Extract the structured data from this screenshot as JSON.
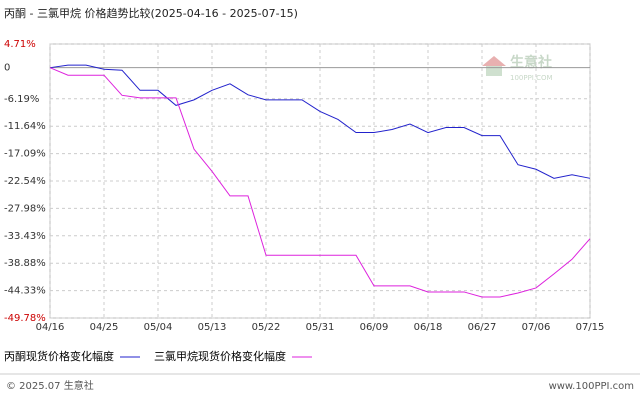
{
  "chart_data": {
    "type": "line",
    "title": "丙酮 - 三氯甲烷 价格趋势比较(2025-04-16 - 2025-07-15)",
    "x": [
      "04/16",
      "04/19",
      "04/22",
      "04/25",
      "04/28",
      "05/01",
      "05/04",
      "05/07",
      "05/10",
      "05/13",
      "05/16",
      "05/19",
      "05/22",
      "05/25",
      "05/28",
      "05/31",
      "06/03",
      "06/06",
      "06/09",
      "06/12",
      "06/15",
      "06/18",
      "06/21",
      "06/24",
      "06/27",
      "06/30",
      "07/03",
      "07/06",
      "07/09",
      "07/12",
      "07/15"
    ],
    "xticks": [
      "04/16",
      "04/25",
      "05/04",
      "05/13",
      "05/22",
      "05/31",
      "06/09",
      "06/18",
      "06/27",
      "07/06",
      "07/15"
    ],
    "series": [
      {
        "name": "丙酮现货价格变化幅度",
        "color": "#2222cc",
        "values": [
          0,
          0.5,
          0.5,
          -0.3,
          -0.5,
          -4.5,
          -4.5,
          -7.5,
          -6.4,
          -4.5,
          -3.2,
          -5.4,
          -6.4,
          -6.4,
          -6.4,
          -8.7,
          -10.3,
          -12.9,
          -12.9,
          -12.3,
          -11.2,
          -12.9,
          -11.9,
          -11.9,
          -13.5,
          -13.5,
          -19.3,
          -20.2,
          -22.0,
          -21.3,
          -22.0
        ]
      },
      {
        "name": "三氯甲烷现货价格变化幅度",
        "color": "#dd22dd",
        "values": [
          0,
          -1.5,
          -1.5,
          -1.5,
          -5.5,
          -6.0,
          -6.0,
          -6.0,
          -16.2,
          -20.6,
          -25.5,
          -25.5,
          -37.3,
          -37.3,
          -37.3,
          -37.3,
          -37.3,
          -37.3,
          -43.4,
          -43.4,
          -43.4,
          -44.6,
          -44.6,
          -44.6,
          -45.6,
          -45.6,
          -44.8,
          -43.8,
          -41.0,
          -38.1,
          -34.0
        ]
      }
    ],
    "ylim": [
      -49.78,
      4.71
    ],
    "yticks": [
      {
        "value": 4.71,
        "label": "4.71%"
      },
      0,
      {
        "value": -6.19,
        "label": "-6.19%"
      },
      {
        "value": -11.64,
        "label": "-11.64%"
      },
      {
        "value": -17.09,
        "label": "-17.09%"
      },
      {
        "value": -22.54,
        "label": "-22.54%"
      },
      {
        "value": -27.98,
        "label": "-27.98%"
      },
      {
        "value": -33.43,
        "label": "-33.43%"
      },
      {
        "value": -38.88,
        "label": "-38.88%"
      },
      {
        "value": -44.33,
        "label": "-44.33%"
      },
      {
        "value": -49.78,
        "label": "-49.78%"
      }
    ],
    "limit_label_color": "#cc0000",
    "grid": true,
    "watermark": "生意社",
    "watermark_sub": "100PPI.COM",
    "copyright": "© 2025.07 生意社",
    "website": "www.100PPI.com"
  }
}
